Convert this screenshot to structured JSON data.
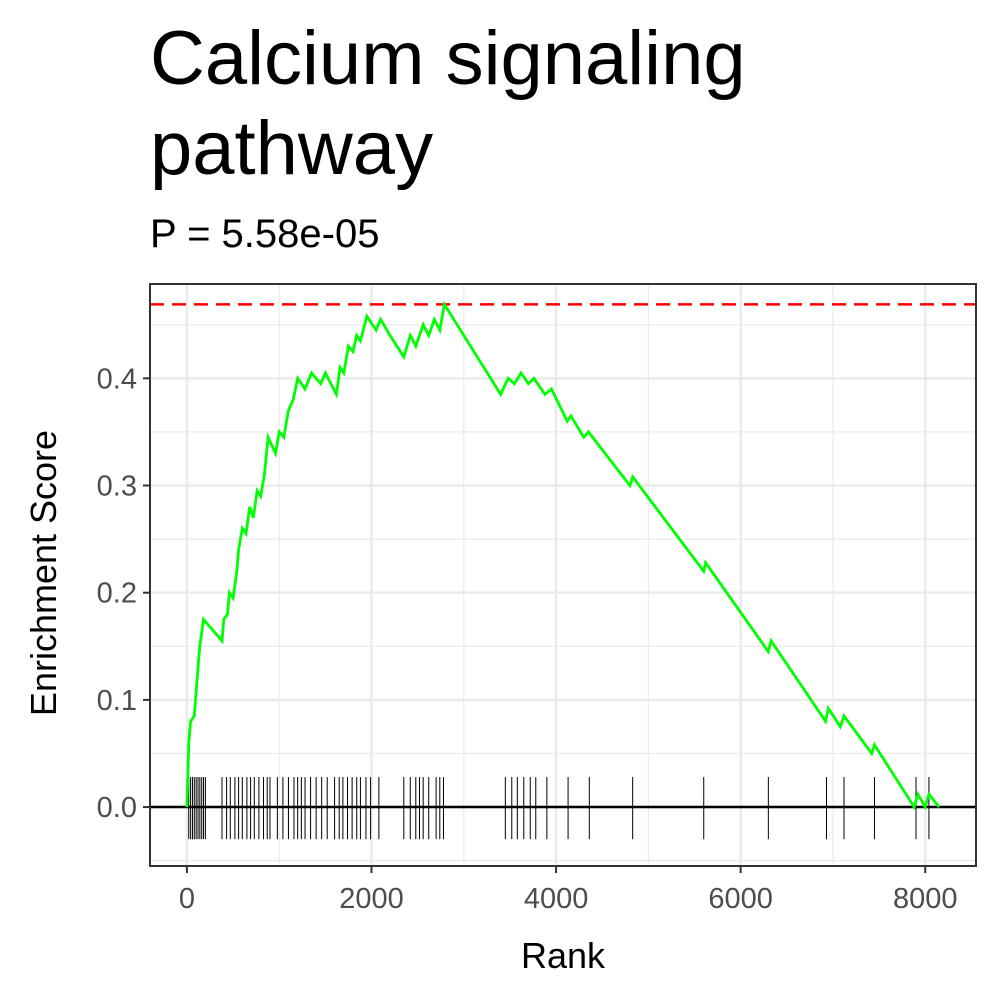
{
  "chart_data": {
    "type": "line",
    "title": "Calcium signaling\npathway",
    "subtitle": "P = 5.58e-05",
    "xlabel": "Rank",
    "ylabel": "Enrichment Score",
    "xlim": [
      -400,
      8550
    ],
    "ylim": [
      -0.055,
      0.488
    ],
    "x_ticks": [
      0,
      2000,
      4000,
      6000,
      8000
    ],
    "x_tick_labels": [
      "0",
      "2000",
      "4000",
      "6000",
      "8000"
    ],
    "y_ticks": [
      0.0,
      0.1,
      0.2,
      0.3,
      0.4
    ],
    "y_tick_labels": [
      "0.0",
      "0.1",
      "0.2",
      "0.3",
      "0.4"
    ],
    "grid": true,
    "max_es": 0.469,
    "colors": {
      "curve": "#00ff00",
      "max_line": "#ff0000",
      "hits": "#000000",
      "zero_line": "#000000",
      "grid": "#ebebeb",
      "panel_border": "#333333"
    },
    "series": [
      {
        "values": [
          [
            0,
            0
          ],
          [
            20,
            0.06
          ],
          [
            40,
            0.08
          ],
          [
            80,
            0.085
          ],
          [
            120,
            0.13
          ],
          [
            140,
            0.15
          ],
          [
            180,
            0.175
          ],
          [
            280,
            0.165
          ],
          [
            380,
            0.155
          ],
          [
            400,
            0.175
          ],
          [
            440,
            0.18
          ],
          [
            460,
            0.2
          ],
          [
            500,
            0.195
          ],
          [
            540,
            0.22
          ],
          [
            560,
            0.24
          ],
          [
            600,
            0.26
          ],
          [
            640,
            0.255
          ],
          [
            680,
            0.28
          ],
          [
            720,
            0.27
          ],
          [
            760,
            0.295
          ],
          [
            800,
            0.29
          ],
          [
            840,
            0.31
          ],
          [
            880,
            0.345
          ],
          [
            960,
            0.33
          ],
          [
            1000,
            0.35
          ],
          [
            1050,
            0.345
          ],
          [
            1100,
            0.37
          ],
          [
            1150,
            0.38
          ],
          [
            1200,
            0.4
          ],
          [
            1280,
            0.39
          ],
          [
            1350,
            0.405
          ],
          [
            1450,
            0.395
          ],
          [
            1500,
            0.405
          ],
          [
            1620,
            0.385
          ],
          [
            1660,
            0.41
          ],
          [
            1700,
            0.405
          ],
          [
            1750,
            0.43
          ],
          [
            1800,
            0.425
          ],
          [
            1840,
            0.44
          ],
          [
            1880,
            0.435
          ],
          [
            1950,
            0.458
          ],
          [
            2050,
            0.445
          ],
          [
            2100,
            0.455
          ],
          [
            2200,
            0.44
          ],
          [
            2350,
            0.42
          ],
          [
            2420,
            0.44
          ],
          [
            2480,
            0.43
          ],
          [
            2560,
            0.45
          ],
          [
            2620,
            0.44
          ],
          [
            2680,
            0.455
          ],
          [
            2740,
            0.445
          ],
          [
            2790,
            0.469
          ],
          [
            3400,
            0.385
          ],
          [
            3480,
            0.4
          ],
          [
            3550,
            0.395
          ],
          [
            3620,
            0.405
          ],
          [
            3700,
            0.395
          ],
          [
            3760,
            0.4
          ],
          [
            3880,
            0.385
          ],
          [
            3950,
            0.39
          ],
          [
            4120,
            0.36
          ],
          [
            4160,
            0.365
          ],
          [
            4300,
            0.345
          ],
          [
            4350,
            0.35
          ],
          [
            4800,
            0.3
          ],
          [
            4830,
            0.308
          ],
          [
            5600,
            0.22
          ],
          [
            5620,
            0.228
          ],
          [
            6300,
            0.145
          ],
          [
            6330,
            0.155
          ],
          [
            6920,
            0.08
          ],
          [
            6950,
            0.092
          ],
          [
            7080,
            0.075
          ],
          [
            7120,
            0.085
          ],
          [
            7420,
            0.05
          ],
          [
            7450,
            0.058
          ],
          [
            7880,
            0.0
          ],
          [
            7920,
            0.012
          ],
          [
            8000,
            0.0
          ],
          [
            8040,
            0.012
          ],
          [
            8150,
            0.0
          ]
        ]
      }
    ],
    "hits": [
      20,
      40,
      60,
      80,
      100,
      120,
      140,
      160,
      180,
      200,
      380,
      430,
      470,
      520,
      560,
      600,
      650,
      690,
      730,
      780,
      830,
      870,
      900,
      980,
      1040,
      1100,
      1160,
      1200,
      1240,
      1280,
      1340,
      1400,
      1460,
      1520,
      1600,
      1650,
      1690,
      1740,
      1790,
      1840,
      1880,
      1940,
      1990,
      2080,
      2350,
      2420,
      2480,
      2520,
      2560,
      2620,
      2700,
      2740,
      2780,
      3450,
      3520,
      3580,
      3650,
      3720,
      3780,
      3900,
      4130,
      4360,
      4830,
      5600,
      6300,
      6930,
      7120,
      7450,
      7900,
      8040
    ]
  }
}
